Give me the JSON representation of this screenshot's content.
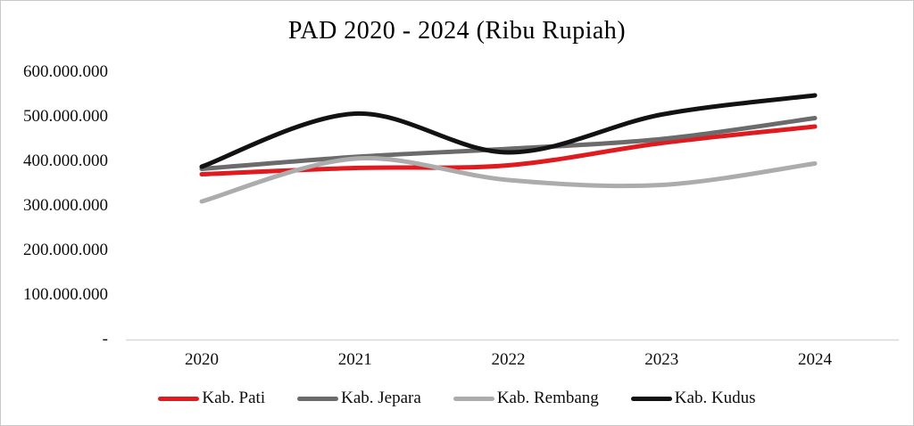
{
  "chart_data": {
    "type": "line",
    "title": "PAD 2020 - 2024 (Ribu Rupiah)",
    "categories": [
      "2020",
      "2021",
      "2022",
      "2023",
      "2024"
    ],
    "series": [
      {
        "name": "Kab. Pati",
        "color": "#e01a1f",
        "values": [
          371000000,
          385000000,
          391000000,
          441000000,
          478000000
        ]
      },
      {
        "name": "Kab. Jepara",
        "color": "#6b6b6b",
        "values": [
          383000000,
          410000000,
          428000000,
          450000000,
          497000000
        ]
      },
      {
        "name": "Kab. Rembang",
        "color": "#acacac",
        "values": [
          310000000,
          406000000,
          358000000,
          347000000,
          395000000
        ]
      },
      {
        "name": "Kab. Kudus",
        "color": "#121212",
        "values": [
          388000000,
          507000000,
          420000000,
          505000000,
          548000000
        ]
      }
    ],
    "y_axis": {
      "min": 0,
      "max": 600000000,
      "tick_step": 100000000,
      "tick_labels_top_to_bottom": [
        "600.000.000",
        "500.000.000",
        "400.000.000",
        "300.000.000",
        "200.000.000",
        "100.000.000",
        "-"
      ]
    },
    "xlabel": "",
    "ylabel": "",
    "legend_position": "bottom",
    "grid": false,
    "smooth_lines": true
  },
  "colors": {
    "background": "#ffffff",
    "axis_line": "#d9d9d9",
    "text": "#0d0d0d"
  }
}
